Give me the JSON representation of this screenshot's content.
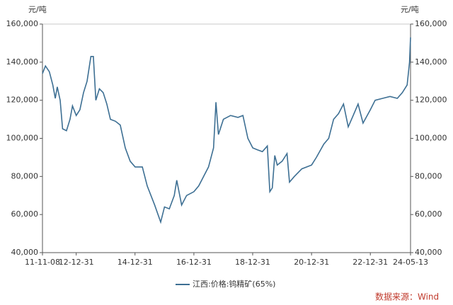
{
  "chart_data": {
    "type": "line",
    "ylabel": "元/吨",
    "y2label": "元/吨",
    "x": [
      "2011-11-08",
      "2011-12-15",
      "2012-02-01",
      "2012-03-15",
      "2012-04-15",
      "2012-05-10",
      "2012-06-15",
      "2012-07-15",
      "2012-09-01",
      "2012-10-15",
      "2012-11-15",
      "2012-12-31",
      "2013-02-15",
      "2013-04-01",
      "2013-05-15",
      "2013-07-01",
      "2013-08-01",
      "2013-09-01",
      "2013-10-15",
      "2013-12-01",
      "2014-01-15",
      "2014-03-01",
      "2014-05-01",
      "2014-07-01",
      "2014-09-01",
      "2014-11-01",
      "2015-01-01",
      "2015-04-01",
      "2015-06-01",
      "2015-09-01",
      "2015-11-15",
      "2016-01-01",
      "2016-03-01",
      "2016-05-01",
      "2016-06-01",
      "2016-08-01",
      "2016-10-01",
      "2016-12-31",
      "2017-03-01",
      "2017-05-01",
      "2017-07-01",
      "2017-09-01",
      "2017-10-01",
      "2017-11-01",
      "2018-01-01",
      "2018-04-01",
      "2018-07-01",
      "2018-09-01",
      "2018-11-01",
      "2019-01-01",
      "2019-03-01",
      "2019-05-01",
      "2019-07-01",
      "2019-08-01",
      "2019-09-01",
      "2019-10-01",
      "2019-11-01",
      "2020-01-01",
      "2020-03-01",
      "2020-04-01",
      "2020-06-01",
      "2020-09-01",
      "2020-12-31",
      "2021-03-01",
      "2021-06-01",
      "2021-08-01",
      "2021-10-01",
      "2021-12-01",
      "2022-02-01",
      "2022-04-01",
      "2022-06-01",
      "2022-08-01",
      "2022-10-01",
      "2022-12-31",
      "2023-03-01",
      "2023-06-01",
      "2023-09-01",
      "2023-12-01",
      "2024-02-01",
      "2024-04-01",
      "2024-05-01",
      "2024-05-13"
    ],
    "series": [
      {
        "name": "江西:价格:钨精矿(65%)",
        "color": "#3d6f93",
        "values": [
          134000,
          138000,
          135000,
          128000,
          121000,
          127000,
          120000,
          105000,
          104000,
          110000,
          117000,
          112000,
          115000,
          124000,
          130000,
          143000,
          143000,
          120000,
          126000,
          124000,
          118000,
          110000,
          109000,
          107000,
          95000,
          88000,
          85000,
          85000,
          75000,
          65000,
          56000,
          64000,
          63000,
          70000,
          78000,
          65000,
          70000,
          72000,
          75000,
          80000,
          85000,
          95000,
          119000,
          102000,
          110000,
          112000,
          111000,
          112000,
          100000,
          95000,
          94000,
          93000,
          96000,
          72000,
          74000,
          91000,
          86000,
          88000,
          92000,
          77000,
          80000,
          84000,
          86000,
          90000,
          97000,
          100000,
          110000,
          113000,
          118000,
          106000,
          112000,
          118000,
          108000,
          115000,
          120000,
          121000,
          122000,
          121000,
          124000,
          128000,
          140000,
          153000
        ]
      }
    ],
    "xlim": [
      "2011-11-08",
      "2024-05-13"
    ],
    "xticks": [
      {
        "value": "2011-11-08",
        "label": "11-11-08"
      },
      {
        "value": "2012-12-31",
        "label": "12-12-31"
      },
      {
        "value": "2014-12-31",
        "label": "14-12-31"
      },
      {
        "value": "2016-12-31",
        "label": "16-12-31"
      },
      {
        "value": "2018-12-31",
        "label": "18-12-31"
      },
      {
        "value": "2020-12-31",
        "label": "20-12-31"
      },
      {
        "value": "2022-12-31",
        "label": "22-12-31"
      },
      {
        "value": "2024-05-13",
        "label": "24-05-13"
      }
    ],
    "ylim": [
      40000,
      160000
    ],
    "yticks": [
      {
        "value": 40000,
        "label": "40,000"
      },
      {
        "value": 60000,
        "label": "60,000"
      },
      {
        "value": 80000,
        "label": "80,000"
      },
      {
        "value": 100000,
        "label": "100,000"
      },
      {
        "value": 120000,
        "label": "120,000"
      },
      {
        "value": 140000,
        "label": "140,000"
      },
      {
        "value": 160000,
        "label": "160,000"
      }
    ],
    "y2lim": [
      40000,
      160000
    ],
    "y2ticks": [
      {
        "value": 40000,
        "label": "40,000"
      },
      {
        "value": 60000,
        "label": "60,000"
      },
      {
        "value": 80000,
        "label": "80,000"
      },
      {
        "value": 100000,
        "label": "100,000"
      },
      {
        "value": 120000,
        "label": "120,000"
      },
      {
        "value": 140000,
        "label": "140,000"
      },
      {
        "value": 160000,
        "label": "160,000"
      }
    ],
    "legend": "bottom",
    "source": "数据来源：Wind"
  }
}
